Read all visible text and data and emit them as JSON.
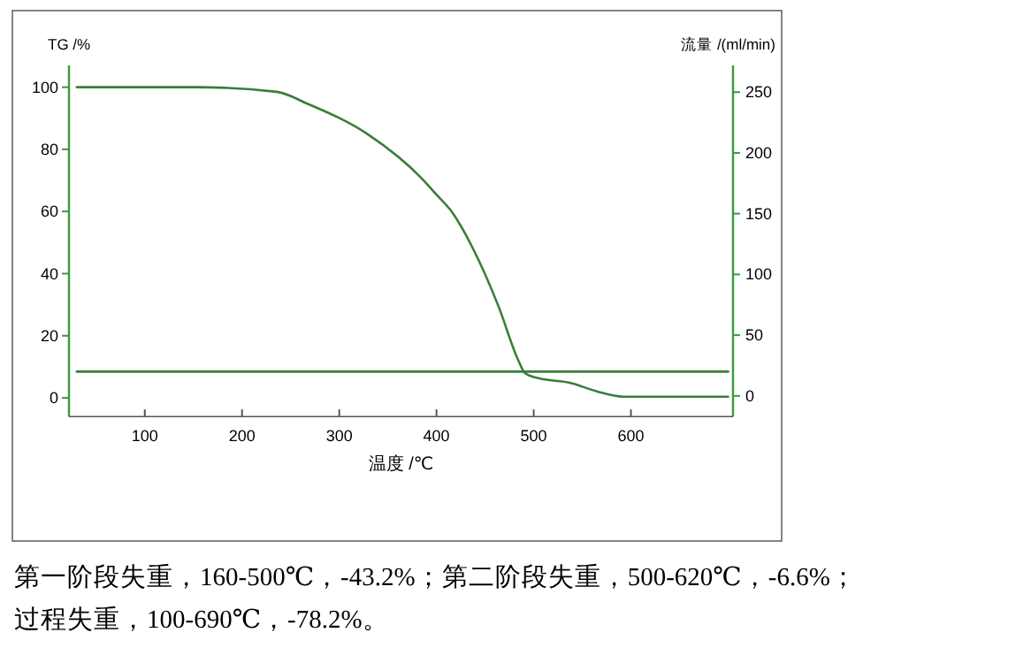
{
  "chart_data": {
    "type": "line",
    "xlabel": "温度 /℃",
    "ylabel": "TG /%",
    "y2label": "流量 /(ml/min)",
    "xlim": [
      22,
      705
    ],
    "xticks": [
      100,
      200,
      300,
      400,
      500,
      600
    ],
    "ylim": [
      -6,
      107
    ],
    "yticks": [
      0,
      20,
      40,
      60,
      80,
      100
    ],
    "y2lim": [
      -17,
      272
    ],
    "y2ticks": [
      0,
      50,
      100,
      150,
      200,
      250
    ],
    "grid": false,
    "marker": "none",
    "line_style": "solid",
    "series": [
      {
        "color": "#3a7d3a",
        "x": [
          30,
          153,
          236,
          267,
          330,
          384,
          400,
          416,
          437,
          464,
          484,
          491,
          504,
          538,
          565,
          592,
          700
        ],
        "values": [
          100,
          100,
          98.5,
          94.7,
          84.7,
          70.9,
          65.4,
          59.8,
          48.4,
          29.3,
          12.2,
          8.0,
          6.4,
          4.8,
          2.1,
          0.4,
          0.4
        ]
      },
      {
        "color": "#3a7d3a",
        "axis": "y2",
        "x": [
          30,
          700
        ],
        "values": [
          20,
          20
        ]
      }
    ],
    "annotations": [
      "第一阶段失重，160-500℃，-43.2%；第二阶段失重，500-620℃，-6.6%；",
      "过程失重，100-690℃，-78.2%。"
    ]
  }
}
